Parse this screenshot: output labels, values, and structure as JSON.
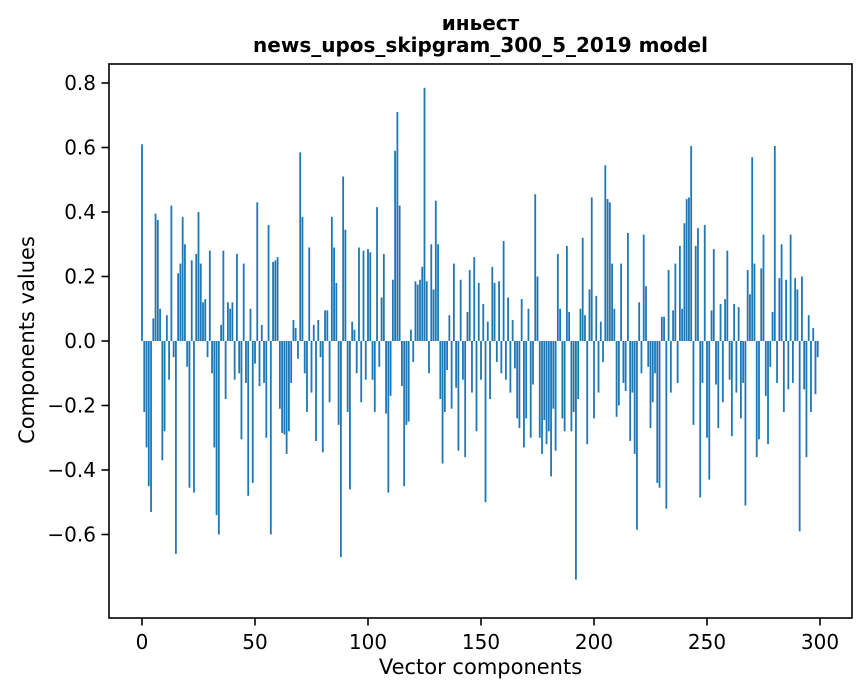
{
  "chart_data": {
    "type": "bar",
    "title": "иньест",
    "subtitle": "news_upos_skipgram_300_5_2019 model",
    "xlabel": "Vector components",
    "ylabel": "Components values",
    "bar_color": "#1f77b4",
    "axis_color": "#000000",
    "background_color": "#ffffff",
    "grid": false,
    "n_components": 300,
    "xlim": [
      -14.6,
      314.2
    ],
    "ylim": [
      -0.865,
      0.86
    ],
    "xticks": [
      {
        "value": 0,
        "label": "0"
      },
      {
        "value": 50,
        "label": "50"
      },
      {
        "value": 100,
        "label": "100"
      },
      {
        "value": 150,
        "label": "150"
      },
      {
        "value": 200,
        "label": "200"
      },
      {
        "value": 250,
        "label": "250"
      },
      {
        "value": 300,
        "label": "300"
      }
    ],
    "yticks": [
      {
        "value": 0.8,
        "label": "0.8"
      },
      {
        "value": 0.6,
        "label": "0.6"
      },
      {
        "value": 0.4,
        "label": "0.4"
      },
      {
        "value": 0.2,
        "label": "0.2"
      },
      {
        "value": 0.0,
        "label": "0.0"
      },
      {
        "value": -0.2,
        "label": "−0.2"
      },
      {
        "value": -0.4,
        "label": "−0.4"
      },
      {
        "value": -0.6,
        "label": "−0.6"
      }
    ],
    "values": [
      0.61,
      -0.22,
      -0.33,
      -0.45,
      -0.53,
      0.07,
      0.395,
      0.375,
      0.1,
      -0.37,
      -0.28,
      0.08,
      -0.12,
      0.42,
      -0.05,
      -0.66,
      0.21,
      0.24,
      0.385,
      0.3,
      -0.08,
      -0.455,
      0.25,
      -0.47,
      0.27,
      0.4,
      0.24,
      0.12,
      0.13,
      -0.05,
      0.28,
      -0.1,
      -0.33,
      -0.54,
      -0.6,
      0.05,
      0.28,
      -0.18,
      0.12,
      0.1,
      0.12,
      -0.12,
      0.27,
      -0.1,
      -0.305,
      0.24,
      -0.13,
      -0.48,
      0.1,
      -0.44,
      -0.07,
      0.43,
      -0.14,
      0.05,
      -0.13,
      -0.3,
      0.36,
      -0.6,
      0.245,
      0.25,
      0.26,
      -0.21,
      -0.285,
      -0.29,
      -0.35,
      -0.28,
      -0.13,
      0.065,
      0.04,
      -0.055,
      0.585,
      0.385,
      -0.1,
      -0.22,
      0.29,
      -0.16,
      0.05,
      -0.31,
      0.065,
      -0.05,
      -0.345,
      0.095,
      0.095,
      -0.19,
      0.385,
      0.29,
      0.18,
      -0.26,
      -0.67,
      0.51,
      0.345,
      -0.22,
      -0.46,
      0.06,
      0.035,
      -0.1,
      0.29,
      -0.19,
      0.28,
      -0.12,
      0.285,
      0.275,
      -0.12,
      -0.22,
      0.415,
      -0.08,
      0.135,
      0.27,
      -0.225,
      -0.47,
      -0.17,
      0.19,
      0.59,
      0.71,
      0.42,
      -0.14,
      -0.45,
      -0.26,
      -0.25,
      0.035,
      -0.065,
      0.185,
      0.175,
      0.19,
      0.23,
      0.785,
      0.185,
      -0.1,
      0.3,
      0.16,
      0.435,
      0.3,
      -0.18,
      -0.38,
      -0.22,
      -0.09,
      0.08,
      -0.21,
      0.24,
      -0.145,
      -0.34,
      0.19,
      -0.12,
      -0.36,
      0.09,
      0.22,
      -0.16,
      0.26,
      -0.28,
      0.18,
      -0.12,
      0.115,
      -0.5,
      0.06,
      -0.18,
      0.23,
      0.18,
      -0.065,
      0.185,
      -0.1,
      0.31,
      -0.12,
      0.135,
      -0.16,
      0.065,
      -0.085,
      -0.24,
      -0.27,
      0.13,
      -0.33,
      -0.24,
      0.1,
      -0.3,
      -0.135,
      0.455,
      0.2,
      -0.3,
      -0.35,
      -0.245,
      -0.32,
      -0.28,
      -0.42,
      -0.21,
      -0.34,
      0.27,
      0.1,
      -0.24,
      -0.28,
      0.295,
      0.09,
      -0.28,
      -0.22,
      -0.74,
      -0.18,
      0.1,
      0.32,
      0.08,
      -0.32,
      0.16,
      0.445,
      -0.24,
      0.14,
      -0.16,
      0.06,
      -0.065,
      0.545,
      0.44,
      0.43,
      0.24,
      0.1,
      -0.235,
      -0.2,
      0.24,
      -0.13,
      -0.155,
      0.335,
      -0.31,
      -0.16,
      -0.35,
      -0.585,
      0.12,
      -0.1,
      0.33,
      0.17,
      -0.08,
      -0.27,
      -0.19,
      -0.1,
      -0.44,
      -0.455,
      0.075,
      0.075,
      -0.52,
      0.22,
      -0.16,
      0.095,
      0.24,
      -0.13,
      0.295,
      0.1,
      0.365,
      0.44,
      0.445,
      0.605,
      -0.26,
      0.295,
      0.35,
      -0.485,
      -0.13,
      0.36,
      -0.3,
      -0.43,
      0.095,
      0.285,
      -0.135,
      -0.27,
      0.115,
      -0.19,
      0.13,
      0.28,
      -0.12,
      -0.295,
      0.115,
      -0.16,
      0.105,
      -0.24,
      -0.13,
      -0.51,
      0.22,
      0.145,
      0.57,
      0.24,
      -0.36,
      -0.305,
      0.225,
      0.33,
      -0.17,
      -0.32,
      -0.08,
      0.09,
      0.605,
      -0.13,
      0.195,
      0.3,
      -0.22,
      0.19,
      -0.15,
      0.33,
      -0.13,
      0.195,
      0.16,
      -0.59,
      0.2,
      -0.15,
      -0.36,
      0.08,
      -0.22,
      0.04,
      -0.165,
      -0.05
    ]
  }
}
